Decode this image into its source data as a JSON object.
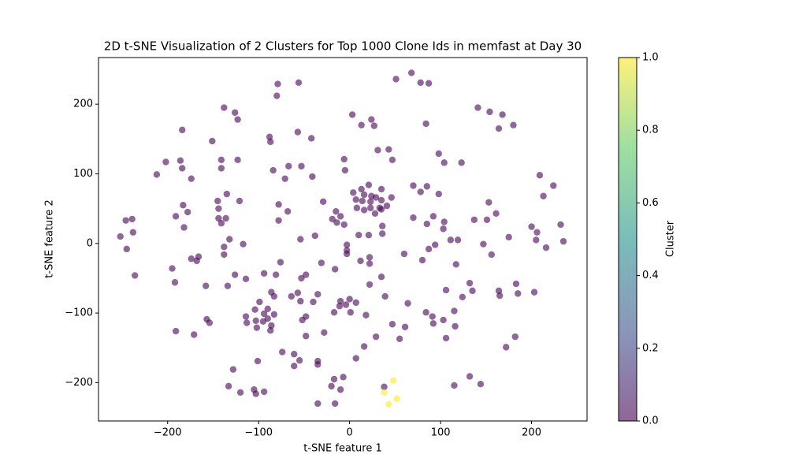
{
  "chart_data": {
    "type": "scatter",
    "title": "2D t-SNE Visualization of 2 Clusters for Top 1000 Clone Ids in memfast at Day 30",
    "xlabel": "t-SNE feature 1",
    "ylabel": "t-SNE feature 2",
    "xlim": [
      -276,
      261
    ],
    "ylim": [
      -255,
      267
    ],
    "xticks": [
      {
        "value": -200,
        "label": "−200"
      },
      {
        "value": -100,
        "label": "−100"
      },
      0,
      100,
      200
    ],
    "yticks": [
      {
        "value": -200,
        "label": "−200"
      },
      {
        "value": -100,
        "label": "−100"
      },
      0,
      100,
      200
    ],
    "alpha": 0.6,
    "colormap": [
      "#440154",
      "#3b528b",
      "#21918c",
      "#5ec962",
      "#fde725"
    ],
    "colorbar": {
      "label": "Cluster",
      "lim": [
        0,
        1
      ],
      "ticks": [
        {
          "value": 0,
          "label": "0.0"
        },
        0.2,
        0.4,
        0.6,
        0.8,
        {
          "value": 1,
          "label": "1.0"
        }
      ]
    },
    "x": [
      -252,
      -245,
      -246,
      -239,
      -238,
      -236,
      -212,
      -202,
      -191,
      -195,
      -192,
      -191,
      -186,
      -184,
      -184,
      -183,
      -182,
      -178,
      -174,
      -174,
      -168,
      -166,
      -171,
      -158,
      -157,
      -154,
      -151,
      -145,
      -144,
      -144,
      -141,
      -141,
      -141,
      -138,
      -138,
      -138,
      -135,
      -136,
      -134,
      -133,
      -132,
      -128,
      -126,
      -126,
      -123,
      -123,
      -121,
      -117,
      -114,
      -114,
      -113,
      -120,
      -105,
      -103,
      -104,
      -103,
      -101,
      -102,
      -99,
      -95,
      -94,
      -94,
      -94,
      -90,
      -88,
      -87,
      -90,
      -87,
      -86,
      -84,
      -86,
      -83,
      -83,
      -79,
      -80,
      -81,
      -78,
      -78,
      -76,
      -74,
      -71,
      -68,
      -67,
      -64,
      -61,
      -61,
      -57,
      -56,
      -57,
      -54,
      -54,
      -53,
      -53,
      -55,
      -48,
      -48,
      -52,
      -48,
      -42,
      -41,
      -40,
      -38,
      -35,
      -35,
      -35,
      -35,
      -31,
      -29,
      -28,
      -19,
      -17,
      -17,
      -16,
      -15,
      -16,
      -14,
      -20,
      -10,
      -10,
      -11,
      -10,
      -7,
      -6,
      -6,
      -5,
      -3,
      -4,
      -3,
      -3,
      0,
      1,
      3,
      4,
      7,
      7,
      7,
      8,
      10,
      12,
      13,
      13,
      14,
      16,
      16,
      16,
      18,
      21,
      23,
      21,
      22,
      22,
      22,
      23,
      24,
      24,
      27,
      28,
      29,
      29,
      31,
      33,
      35,
      35,
      35,
      36,
      36,
      35,
      38,
      39,
      41,
      43,
      46,
      47,
      47,
      51,
      55,
      61,
      60,
      64,
      68,
      70,
      70,
      78,
      78,
      80,
      84,
      84,
      85,
      85,
      87,
      87,
      91,
      92,
      92,
      94,
      98,
      98,
      103,
      103,
      104,
      104,
      106,
      106,
      111,
      115,
      116,
      117,
      115,
      119,
      123,
      124,
      132,
      132,
      135,
      137,
      141,
      144,
      147,
      151,
      153,
      154,
      156,
      161,
      164,
      164,
      165,
      168,
      172,
      175,
      180,
      182,
      183,
      185,
      200,
      203,
      206,
      205,
      209,
      213,
      216,
      224,
      232,
      235,
      48,
      38,
      43,
      52
    ],
    "y": [
      10,
      -8,
      33,
      35,
      16,
      -46,
      99,
      117,
      39,
      -36,
      -56,
      -126,
      119,
      108,
      163,
      55,
      23,
      45,
      93,
      -22,
      -25,
      -19,
      -131,
      -61,
      -109,
      -114,
      147,
      61,
      50,
      36,
      29,
      120,
      108,
      -5,
      -16,
      195,
      71,
      36,
      -61,
      -205,
      6,
      -181,
      -45,
      188,
      178,
      120,
      61,
      -1,
      -51,
      -105,
      -114,
      -214,
      -210,
      -216,
      -95,
      -111,
      -169,
      -121,
      -84,
      -112,
      -101,
      -43,
      -213,
      -94,
      153,
      146,
      -108,
      -125,
      -70,
      105,
      -118,
      -76,
      -102,
      229,
      212,
      -45,
      56,
      33,
      -27,
      -156,
      93,
      46,
      111,
      -76,
      -159,
      -176,
      160,
      231,
      -71,
      -83,
      6,
      111,
      -50,
      -168,
      -45,
      -133,
      -110,
      -105,
      151,
      96,
      -84,
      11,
      -169,
      -230,
      -174,
      -73,
      -28,
      60,
      -128,
      35,
      -99,
      -195,
      -37,
      46,
      -230,
      30,
      -205,
      -210,
      -83,
      -90,
      39,
      -192,
      27,
      121,
      105,
      -2,
      -88,
      -10,
      -15,
      -80,
      -99,
      185,
      73,
      -85,
      63,
      -165,
      51,
      12,
      -25,
      170,
      78,
      61,
      48,
      -148,
      70,
      -103,
      84,
      51,
      12,
      -20,
      -29,
      -59,
      60,
      178,
      68,
      169,
      43,
      -134,
      66,
      134,
      51,
      78,
      62,
      -48,
      25,
      14,
      49,
      -206,
      -76,
      54,
      135,
      66,
      120,
      -116,
      236,
      -137,
      -120,
      -15,
      -86,
      245,
      83,
      37,
      74,
      231,
      -24,
      -99,
      172,
      82,
      28,
      -8,
      230,
      -105,
      -115,
      39,
      -2,
      129,
      71,
      -110,
      21,
      31,
      116,
      -67,
      -136,
      5,
      -97,
      -119,
      -30,
      -204,
      5,
      116,
      -77,
      -57,
      -191,
      -68,
      34,
      195,
      -202,
      -1,
      34,
      59,
      189,
      -16,
      43,
      165,
      -68,
      -75,
      185,
      -149,
      9,
      170,
      -134,
      -58,
      -72,
      24,
      -70,
      16,
      5,
      98,
      68,
      -6,
      83,
      27,
      3,
      -197,
      -214,
      -231,
      -223
    ],
    "c": [
      0,
      0,
      0,
      0,
      0,
      0,
      0,
      0,
      0,
      0,
      0,
      0,
      0,
      0,
      0,
      0,
      0,
      0,
      0,
      0,
      0,
      0,
      0,
      0,
      0,
      0,
      0,
      0,
      0,
      0,
      0,
      0,
      0,
      0,
      0,
      0,
      0,
      0,
      0,
      0,
      0,
      0,
      0,
      0,
      0,
      0,
      0,
      0,
      0,
      0,
      0,
      0,
      0,
      0,
      0,
      0,
      0,
      0,
      0,
      0,
      0,
      0,
      0,
      0,
      0,
      0,
      0,
      0,
      0,
      0,
      0,
      0,
      0,
      0,
      0,
      0,
      0,
      0,
      0,
      0,
      0,
      0,
      0,
      0,
      0,
      0,
      0,
      0,
      0,
      0,
      0,
      0,
      0,
      0,
      0,
      0,
      0,
      0,
      0,
      0,
      0,
      0,
      0,
      0,
      0,
      0,
      0,
      0,
      0,
      0,
      0,
      0,
      0,
      0,
      0,
      0,
      0,
      0,
      0,
      0,
      0,
      0,
      0,
      0,
      0,
      0,
      0,
      0,
      0,
      0,
      0,
      0,
      0,
      0,
      0,
      0,
      0,
      0,
      0,
      0,
      0,
      0,
      0,
      0,
      0,
      0,
      0,
      0,
      0,
      0,
      0,
      0,
      0,
      0,
      0,
      0,
      0,
      0,
      0,
      0,
      0,
      0,
      0,
      0,
      0,
      0,
      0,
      0,
      0,
      0,
      0,
      0,
      0,
      0,
      0,
      0,
      0,
      0,
      0,
      0,
      0,
      0,
      0,
      0,
      0,
      0,
      0,
      0,
      0,
      0,
      0,
      0,
      0,
      0,
      0,
      0,
      0,
      0,
      0,
      0,
      0,
      0,
      0,
      0,
      0,
      0,
      0,
      0,
      0,
      0,
      0,
      0,
      0,
      0,
      0,
      0,
      0,
      0,
      0,
      0,
      0,
      0,
      0,
      0,
      0,
      0,
      0,
      0,
      0,
      0,
      0,
      0,
      0,
      0,
      0,
      0,
      0,
      0,
      0,
      0,
      0,
      0,
      0,
      1,
      1,
      1,
      1
    ]
  }
}
